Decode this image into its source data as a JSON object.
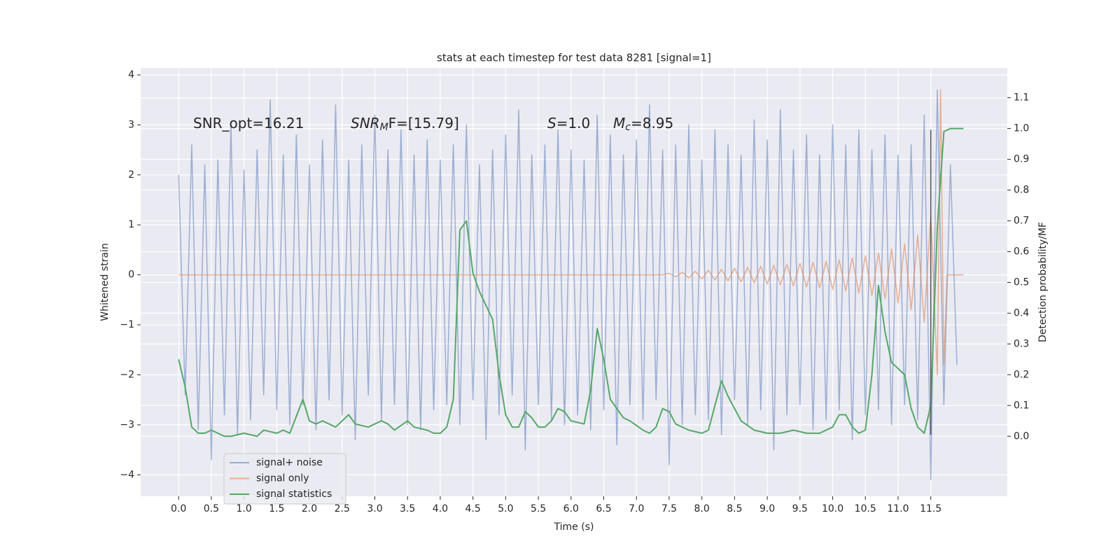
{
  "chart_data": {
    "type": "line",
    "title": "stats at each timestep for test data 8281 [signal=1]",
    "xlabel": "Time (s)",
    "ylabel": "Whitened strain",
    "y2label": "Detection probability/MF",
    "background": "#eaeaf2",
    "grid": true,
    "legend": "lower left",
    "xlim": [
      -0.58,
      12.67
    ],
    "ylim": [
      -4.43,
      4.14
    ],
    "y2lim": [
      -0.195,
      1.197
    ],
    "xticks": [
      {
        "value": 0,
        "label": "0.0"
      },
      0.5,
      {
        "value": 1,
        "label": "1.0"
      },
      1.5,
      {
        "value": 2,
        "label": "2.0"
      },
      2.5,
      {
        "value": 3,
        "label": "3.0"
      },
      3.5,
      {
        "value": 4,
        "label": "4.0"
      },
      4.5,
      {
        "value": 5,
        "label": "5.0"
      },
      5.5,
      {
        "value": 6,
        "label": "6.0"
      },
      6.5,
      {
        "value": 7,
        "label": "7.0"
      },
      7.5,
      {
        "value": 8,
        "label": "8.0"
      },
      8.5,
      {
        "value": 9,
        "label": "9.0"
      },
      9.5,
      {
        "value": 10,
        "label": "10.0"
      },
      10.5,
      {
        "value": 11,
        "label": "11.0"
      },
      11.5
    ],
    "yticks": [
      {
        "value": -4,
        "label": "−4"
      },
      {
        "value": -3,
        "label": "−3"
      },
      {
        "value": -2,
        "label": "−2"
      },
      {
        "value": -1,
        "label": "−1"
      },
      0,
      1,
      2,
      3,
      4
    ],
    "y2ticks": [
      {
        "value": 0,
        "label": "0.0"
      },
      0.1,
      0.2,
      0.3,
      0.4,
      0.5,
      0.6,
      0.7,
      0.8,
      0.9,
      {
        "value": 1,
        "label": "1.0"
      },
      1.1
    ],
    "annotations": [
      {
        "parts": [
          {
            "text": "SNR_opt=16.21",
            "style": "normal"
          }
        ]
      },
      {
        "parts": [
          {
            "text": "SNR",
            "style": "italic"
          },
          {
            "text": "M",
            "style": "sub"
          },
          {
            "text": "F=[15.79]",
            "style": "normal"
          }
        ]
      },
      {
        "parts": [
          {
            "text": "S",
            "style": "italic"
          },
          {
            "text": "=1.0",
            "style": "normal"
          }
        ]
      },
      {
        "parts": [
          {
            "text": "M",
            "style": "italic"
          },
          {
            "text": "c",
            "style": "sub"
          },
          {
            "text": "=8.95",
            "style": "normal"
          }
        ]
      }
    ],
    "vline": {
      "x": 11.5,
      "ymin": -3.2,
      "ymax": 2.9,
      "color": "#555555"
    },
    "series": [
      {
        "name": "signal+ noise",
        "color": "#4c72b0",
        "alpha": 0.5,
        "axis": "y",
        "x": [
          0,
          0.1,
          0.2,
          0.3,
          0.4,
          0.5,
          0.6,
          0.7,
          0.8,
          0.9,
          1,
          1.1,
          1.2,
          1.3,
          1.4,
          1.5,
          1.6,
          1.7,
          1.8,
          1.9,
          2,
          2.1,
          2.2,
          2.3,
          2.4,
          2.5,
          2.6,
          2.7,
          2.8,
          2.9,
          3,
          3.1,
          3.2,
          3.3,
          3.4,
          3.5,
          3.6,
          3.7,
          3.8,
          3.9,
          4,
          4.1,
          4.2,
          4.3,
          4.4,
          4.5,
          4.6,
          4.7,
          4.8,
          4.9,
          5,
          5.1,
          5.2,
          5.3,
          5.4,
          5.5,
          5.6,
          5.7,
          5.8,
          5.9,
          6,
          6.1,
          6.2,
          6.3,
          6.4,
          6.5,
          6.6,
          6.7,
          6.8,
          6.9,
          7,
          7.1,
          7.2,
          7.3,
          7.4,
          7.5,
          7.6,
          7.7,
          7.8,
          7.9,
          8,
          8.1,
          8.2,
          8.3,
          8.4,
          8.5,
          8.6,
          8.7,
          8.8,
          8.9,
          9,
          9.1,
          9.2,
          9.3,
          9.4,
          9.5,
          9.6,
          9.7,
          9.8,
          9.9,
          10,
          10.1,
          10.2,
          10.3,
          10.4,
          10.5,
          10.6,
          10.7,
          10.8,
          10.9,
          11,
          11.1,
          11.2,
          11.3,
          11.4,
          11.5,
          11.6,
          11.7,
          11.8,
          11.9
        ],
        "values": [
          2.0,
          -2.4,
          2.6,
          -3.1,
          2.2,
          -3.7,
          2.3,
          -2.8,
          3.0,
          -3.2,
          2.1,
          -2.9,
          2.5,
          -2.4,
          3.5,
          -2.7,
          2.4,
          -3.0,
          2.8,
          -2.6,
          2.2,
          -3.1,
          2.7,
          -2.5,
          3.4,
          -2.8,
          2.3,
          -3.3,
          2.6,
          -2.4,
          3.2,
          -2.9,
          2.5,
          -2.6,
          2.9,
          -3.0,
          2.4,
          -3.1,
          2.7,
          -2.7,
          2.3,
          -2.6,
          2.6,
          -3.0,
          3.0,
          -2.5,
          2.2,
          -3.3,
          2.5,
          -2.8,
          2.8,
          -2.4,
          3.3,
          -3.5,
          2.4,
          -2.6,
          2.6,
          -2.9,
          2.9,
          -3.0,
          2.5,
          -2.8,
          2.3,
          -3.1,
          3.2,
          -2.7,
          2.8,
          -3.4,
          2.4,
          -2.6,
          2.7,
          -2.9,
          3.4,
          -2.5,
          2.5,
          -3.8,
          2.6,
          -3.0,
          3.0,
          -2.8,
          2.3,
          -2.9,
          2.9,
          -3.2,
          2.6,
          -2.5,
          2.4,
          -3.0,
          3.1,
          -2.7,
          2.7,
          -3.5,
          3.3,
          -2.8,
          2.5,
          -2.6,
          2.8,
          -3.1,
          2.4,
          -2.9,
          3.0,
          -2.7,
          2.6,
          -3.3,
          2.9,
          -2.8,
          2.5,
          -2.7,
          2.8,
          -3.0,
          2.4,
          -2.6,
          2.6,
          -2.9,
          3.2,
          -4.1,
          3.7,
          -2.6,
          2.2,
          -1.8
        ]
      },
      {
        "name": "signal only",
        "color": "#dd8452",
        "alpha": 0.6,
        "axis": "y",
        "x": [
          0,
          7.4,
          7.5,
          7.6,
          7.7,
          7.8,
          7.9,
          8,
          8.1,
          8.2,
          8.3,
          8.4,
          8.5,
          8.6,
          8.7,
          8.8,
          8.9,
          9,
          9.1,
          9.2,
          9.3,
          9.4,
          9.5,
          9.6,
          9.7,
          9.8,
          9.9,
          10,
          10.1,
          10.2,
          10.3,
          10.4,
          10.5,
          10.6,
          10.7,
          10.8,
          10.9,
          11,
          11.1,
          11.2,
          11.3,
          11.4,
          11.5,
          11.6,
          11.65,
          11.7,
          11.75,
          12
        ],
        "values": [
          0,
          0,
          0.03,
          -0.04,
          0.05,
          -0.06,
          0.07,
          -0.08,
          0.09,
          -0.1,
          0.11,
          -0.12,
          0.13,
          -0.14,
          0.15,
          -0.16,
          0.17,
          -0.18,
          0.19,
          -0.2,
          0.21,
          -0.22,
          0.23,
          -0.24,
          0.25,
          -0.26,
          0.27,
          -0.29,
          0.3,
          -0.32,
          0.34,
          -0.36,
          0.38,
          -0.41,
          0.44,
          -0.48,
          0.52,
          -0.56,
          0.62,
          -0.7,
          0.8,
          -0.95,
          1.2,
          -2.0,
          3.7,
          -1.8,
          0,
          0
        ]
      },
      {
        "name": "signal statistics",
        "color": "#55a868",
        "alpha": 1,
        "axis": "y2",
        "x": [
          0,
          0.1,
          0.2,
          0.3,
          0.4,
          0.5,
          0.6,
          0.7,
          0.8,
          1.0,
          1.2,
          1.3,
          1.5,
          1.6,
          1.7,
          1.9,
          2.0,
          2.1,
          2.2,
          2.4,
          2.5,
          2.6,
          2.7,
          2.9,
          3.1,
          3.2,
          3.3,
          3.5,
          3.6,
          3.8,
          3.9,
          4.0,
          4.1,
          4.2,
          4.3,
          4.4,
          4.5,
          4.6,
          4.8,
          4.9,
          5.0,
          5.1,
          5.2,
          5.3,
          5.4,
          5.5,
          5.6,
          5.7,
          5.8,
          5.9,
          6.0,
          6.2,
          6.3,
          6.4,
          6.5,
          6.6,
          6.8,
          6.9,
          7.1,
          7.2,
          7.3,
          7.4,
          7.5,
          7.6,
          7.8,
          8.0,
          8.1,
          8.2,
          8.3,
          8.4,
          8.6,
          8.8,
          9.0,
          9.2,
          9.4,
          9.6,
          9.8,
          10.0,
          10.1,
          10.2,
          10.3,
          10.4,
          10.5,
          10.6,
          10.7,
          10.8,
          10.9,
          11.0,
          11.1,
          11.2,
          11.3,
          11.4,
          11.5,
          11.6,
          11.7,
          11.8,
          12.0
        ],
        "values": [
          0.25,
          0.16,
          0.03,
          0.01,
          0.01,
          0.02,
          0.01,
          0,
          0,
          0.01,
          0,
          0.02,
          0.01,
          0.02,
          0.01,
          0.12,
          0.05,
          0.04,
          0.05,
          0.03,
          0.05,
          0.07,
          0.04,
          0.03,
          0.05,
          0.04,
          0.02,
          0.05,
          0.03,
          0.02,
          0.01,
          0.01,
          0.03,
          0.12,
          0.67,
          0.7,
          0.53,
          0.47,
          0.38,
          0.2,
          0.07,
          0.03,
          0.03,
          0.08,
          0.06,
          0.03,
          0.03,
          0.05,
          0.09,
          0.08,
          0.05,
          0.04,
          0.15,
          0.35,
          0.25,
          0.12,
          0.06,
          0.05,
          0.02,
          0.01,
          0.03,
          0.09,
          0.08,
          0.04,
          0.02,
          0.01,
          0.02,
          0.1,
          0.18,
          0.13,
          0.05,
          0.02,
          0.01,
          0.01,
          0.02,
          0.01,
          0.01,
          0.03,
          0.07,
          0.07,
          0.03,
          0.01,
          0.02,
          0.2,
          0.49,
          0.34,
          0.24,
          0.22,
          0.2,
          0.09,
          0.03,
          0.01,
          0.1,
          0.68,
          0.99,
          1.0,
          1.0
        ]
      }
    ]
  }
}
